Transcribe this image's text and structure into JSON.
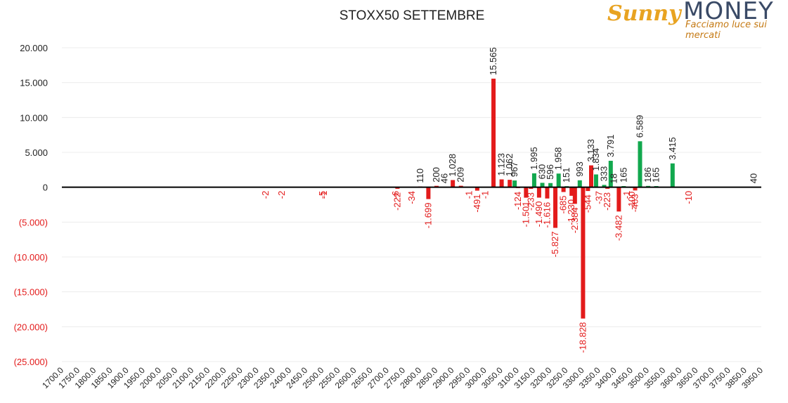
{
  "logo": {
    "brand_script": "Sunny",
    "brand": "MONEY",
    "tagline": "Facciamo luce sui mercati"
  },
  "chart_data": {
    "type": "bar",
    "title": "STOXX50 SETTEMBRE",
    "ylim": [
      -25000,
      20000
    ],
    "yticks": [
      20000,
      15000,
      10000,
      5000,
      0,
      -5000,
      -10000,
      -15000,
      -20000,
      -25000
    ],
    "ytick_labels": [
      "20.000",
      "15.000",
      "10.000",
      "5.000",
      "0",
      "(5.000)",
      "(10.000)",
      "(15.000)",
      "(20.000)",
      "(25.000)"
    ],
    "xtick_labels": [
      "1700.0",
      "1750.0",
      "1800.0",
      "1850.0",
      "1900.0",
      "1950.0",
      "2000.0",
      "2050.0",
      "2100.0",
      "2150.0",
      "2200.0",
      "2250.0",
      "2300.0",
      "2350.0",
      "2400.0",
      "2450.0",
      "2500.0",
      "2550.0",
      "2600.0",
      "2650.0",
      "2700.0",
      "2750.0",
      "2800.0",
      "2850.0",
      "2900.0",
      "2950.0",
      "3000.0",
      "3050.0",
      "3100.0",
      "3150.0",
      "3200.0",
      "3250.0",
      "3300.0",
      "3350.0",
      "3400.0",
      "3450.0",
      "3500.0",
      "3550.0",
      "3600.0",
      "3650.0",
      "3700.0",
      "3750.0",
      "3850.0",
      "3950.0"
    ],
    "grid": true,
    "colors": {
      "positive_green": "#12a84e",
      "negative_red": "#e31b1b",
      "label_red": "#e31b1b",
      "label_dark": "#222222"
    },
    "bars": [
      {
        "x": 2325,
        "value": -2,
        "label": "-2",
        "color": "red"
      },
      {
        "x": 2375,
        "value": -2,
        "label": "-2",
        "color": "red"
      },
      {
        "x": 2500,
        "value": -5,
        "label": "-5",
        "color": "red"
      },
      {
        "x": 2505,
        "value": -1,
        "label": "-1",
        "color": "red"
      },
      {
        "x": 2725,
        "value": -6,
        "label": "-6",
        "color": "red"
      },
      {
        "x": 2730,
        "value": -222,
        "label": "-222",
        "color": "red"
      },
      {
        "x": 2775,
        "value": -34,
        "label": "-34",
        "color": "red"
      },
      {
        "x": 2800,
        "value": 110,
        "label": "110",
        "color": "red"
      },
      {
        "x": 2825,
        "value": -1699,
        "label": "-1.699",
        "color": "red"
      },
      {
        "x": 2850,
        "value": 200,
        "label": "200",
        "color": "red"
      },
      {
        "x": 2875,
        "value": 46,
        "label": "46",
        "color": "red"
      },
      {
        "x": 2900,
        "value": 1028,
        "label": "1.028",
        "color": "red"
      },
      {
        "x": 2925,
        "value": 209,
        "label": "209",
        "color": "red"
      },
      {
        "x": 2950,
        "value": -1,
        "label": "-1",
        "color": "red"
      },
      {
        "x": 2975,
        "value": -491,
        "label": "-491",
        "color": "red"
      },
      {
        "x": 3000,
        "value": -1,
        "label": "-1",
        "color": "red"
      },
      {
        "x": 3025,
        "value": 15565,
        "label": "15.565",
        "color": "red"
      },
      {
        "x": 3050,
        "value": 1123,
        "label": "1.123",
        "color": "red"
      },
      {
        "x": 3075,
        "value": 1062,
        "label": "1.062",
        "color": "red"
      },
      {
        "x": 3090,
        "value": 967,
        "label": "967",
        "color": "green"
      },
      {
        "x": 3100,
        "value": -124,
        "label": "-124",
        "color": "red"
      },
      {
        "x": 3125,
        "value": -1501,
        "label": "-1.501",
        "color": "red"
      },
      {
        "x": 3140,
        "value": -233,
        "label": "-233",
        "color": "red"
      },
      {
        "x": 3150,
        "value": 1995,
        "label": "1.995",
        "color": "green"
      },
      {
        "x": 3165,
        "value": -1490,
        "label": "-1.490",
        "color": "red"
      },
      {
        "x": 3175,
        "value": 630,
        "label": "630",
        "color": "green"
      },
      {
        "x": 3190,
        "value": -1616,
        "label": "-1.616",
        "color": "red"
      },
      {
        "x": 3200,
        "value": 596,
        "label": "596",
        "color": "green"
      },
      {
        "x": 3215,
        "value": -5827,
        "label": "-5.827",
        "color": "red"
      },
      {
        "x": 3225,
        "value": 1958,
        "label": "1.958",
        "color": "green"
      },
      {
        "x": 3240,
        "value": -685,
        "label": "-685",
        "color": "red"
      },
      {
        "x": 3250,
        "value": 151,
        "label": "151",
        "color": "green"
      },
      {
        "x": 3265,
        "value": -1230,
        "label": "-1.230",
        "color": "red"
      },
      {
        "x": 3275,
        "value": -2384,
        "label": "-2.384",
        "color": "red"
      },
      {
        "x": 3290,
        "value": 993,
        "label": "993",
        "color": "green"
      },
      {
        "x": 3300,
        "value": -18828,
        "label": "-18.828",
        "color": "red"
      },
      {
        "x": 3315,
        "value": -544,
        "label": "-544",
        "color": "red"
      },
      {
        "x": 3325,
        "value": 3133,
        "label": "3.133",
        "color": "red"
      },
      {
        "x": 3340,
        "value": 1834,
        "label": "1.834",
        "color": "green"
      },
      {
        "x": 3350,
        "value": -37,
        "label": "-37",
        "color": "red"
      },
      {
        "x": 3365,
        "value": 333,
        "label": "333",
        "color": "green"
      },
      {
        "x": 3375,
        "value": -223,
        "label": "-223",
        "color": "red"
      },
      {
        "x": 3385,
        "value": 3791,
        "label": "3.791",
        "color": "green"
      },
      {
        "x": 3395,
        "value": 18,
        "label": "18",
        "color": "green"
      },
      {
        "x": 3410,
        "value": -3482,
        "label": "-3.482",
        "color": "red"
      },
      {
        "x": 3425,
        "value": 165,
        "label": "165",
        "color": "green"
      },
      {
        "x": 3435,
        "value": -1,
        "label": "-1",
        "color": "red"
      },
      {
        "x": 3450,
        "value": -100,
        "label": "-100",
        "color": "red"
      },
      {
        "x": 3460,
        "value": -463,
        "label": "-463",
        "color": "red"
      },
      {
        "x": 3475,
        "value": 6589,
        "label": "6.589",
        "color": "green"
      },
      {
        "x": 3500,
        "value": 186,
        "label": "186",
        "color": "green"
      },
      {
        "x": 3525,
        "value": 165,
        "label": "165",
        "color": "green"
      },
      {
        "x": 3575,
        "value": 3415,
        "label": "3.415",
        "color": "green"
      },
      {
        "x": 3625,
        "value": -10,
        "label": "-10",
        "color": "red"
      },
      {
        "x": 3825,
        "value": 40,
        "label": "40",
        "color": "green"
      }
    ]
  }
}
